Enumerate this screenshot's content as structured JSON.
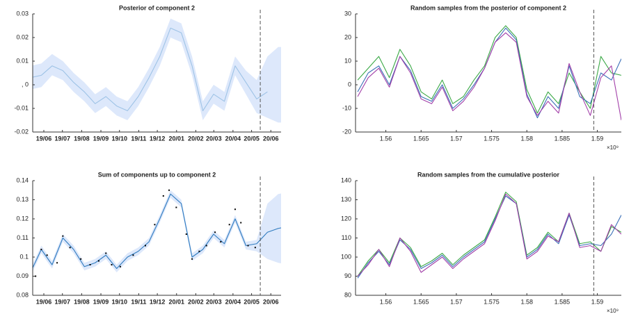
{
  "chart_data": [
    {
      "type": "band-line",
      "title": "Posterior of component 2",
      "x": [
        1.556,
        1.5575,
        1.559,
        1.5605,
        1.562,
        1.5635,
        1.565,
        1.5665,
        1.568,
        1.5695,
        1.571,
        1.5725,
        1.574,
        1.5755,
        1.577,
        1.5785,
        1.58,
        1.5815,
        1.583,
        1.5845,
        1.586,
        1.5875,
        1.589,
        1.5905,
        1.592,
        1.5934
      ],
      "xlim": [
        1.5578,
        1.5924
      ],
      "xticks": [
        {
          "value": 1.55935,
          "label": "19/06"
        },
        {
          "value": 1.56194,
          "label": "19/07"
        },
        {
          "value": 1.56462,
          "label": "19/08"
        },
        {
          "value": 1.5673,
          "label": "19/09"
        },
        {
          "value": 1.56989,
          "label": "19/10"
        },
        {
          "value": 1.57257,
          "label": "19/11"
        },
        {
          "value": 1.57516,
          "label": "19/12"
        },
        {
          "value": 1.57784,
          "label": "20/01"
        },
        {
          "value": 1.58052,
          "label": "20/02"
        },
        {
          "value": 1.58303,
          "label": "20/03"
        },
        {
          "value": 1.5857,
          "label": "20/04"
        },
        {
          "value": 1.58829,
          "label": "20/05"
        },
        {
          "value": 1.59097,
          "label": "20/06"
        }
      ],
      "ylim": [
        -0.02,
        0.03
      ],
      "yticks": [
        -0.02,
        -0.01,
        {
          "value": 0,
          "label": ", 0"
        },
        0.01,
        0.02,
        0.03
      ],
      "vline": 1.5895,
      "band": {
        "color": "#dde8fb",
        "lower": [
          -0.015,
          -0.002,
          -0.001,
          0.004,
          0.002,
          -0.003,
          -0.007,
          -0.012,
          -0.009,
          -0.013,
          -0.015,
          -0.009,
          -0.001,
          0.008,
          0.02,
          0.018,
          0.004,
          -0.015,
          -0.008,
          -0.011,
          0.004,
          -0.004,
          -0.012,
          -0.014,
          -0.016,
          -0.016
        ],
        "upper": [
          0.002,
          0.008,
          0.009,
          0.013,
          0.01,
          0.005,
          0.001,
          -0.004,
          -0.001,
          -0.005,
          -0.007,
          -0.001,
          0.007,
          0.016,
          0.028,
          0.026,
          0.012,
          -0.007,
          0.0,
          -0.003,
          0.012,
          0.006,
          0.002,
          0.012,
          0.016,
          0.016
        ]
      },
      "series": [
        {
          "color": "#9ec3e6",
          "values": [
            -0.006,
            0.003,
            0.004,
            0.008,
            0.006,
            0.001,
            -0.003,
            -0.008,
            -0.005,
            -0.009,
            -0.011,
            -0.005,
            0.003,
            0.012,
            0.024,
            0.022,
            0.008,
            -0.011,
            -0.004,
            -0.007,
            0.008,
            0.001,
            -0.006,
            -0.003,
            null,
            null
          ]
        }
      ]
    },
    {
      "type": "line",
      "title": "Random samples from the posterior of component 2",
      "x": [
        1.556,
        1.5575,
        1.559,
        1.5605,
        1.562,
        1.5635,
        1.565,
        1.5665,
        1.568,
        1.5695,
        1.571,
        1.5725,
        1.574,
        1.5755,
        1.577,
        1.5785,
        1.58,
        1.5815,
        1.583,
        1.5845,
        1.586,
        1.5875,
        1.589,
        1.5905,
        1.592,
        1.5934
      ],
      "xlim": [
        1.5557,
        1.5934
      ],
      "xticks": [
        1.56,
        1.565,
        1.57,
        1.575,
        1.58,
        1.585,
        1.59
      ],
      "x_exponent": "×10⁹",
      "ylim": [
        -20,
        30
      ],
      "yticks": [
        -20,
        -10,
        0,
        10,
        20,
        30
      ],
      "vline": 1.5895,
      "series": [
        {
          "color": "#3aa845",
          "values": [
            2,
            7,
            12,
            3,
            15,
            8,
            -3,
            -6,
            2,
            -8,
            -5,
            2,
            8,
            20,
            25,
            20,
            -2,
            -12,
            -3,
            -8,
            5,
            -3,
            -10,
            12,
            5,
            4
          ]
        },
        {
          "color": "#3a6fb7",
          "values": [
            -3,
            5,
            8,
            0,
            12,
            6,
            -5,
            -7,
            0,
            -10,
            -6,
            0,
            7,
            18,
            24,
            19,
            -4,
            -14,
            -5,
            -10,
            8,
            -5,
            -8,
            5,
            2,
            11
          ]
        },
        {
          "color": "#a23fa8",
          "values": [
            -5,
            3,
            7,
            -1,
            12,
            5,
            -6,
            -8,
            -1,
            -11,
            -7,
            -1,
            7,
            18,
            22,
            18,
            -5,
            -13,
            -7,
            -12,
            9,
            -3,
            -13,
            3,
            8,
            -15
          ]
        }
      ]
    },
    {
      "type": "band-line",
      "title": "Sum of components up to component 2",
      "x": [
        1.556,
        1.5575,
        1.559,
        1.5605,
        1.562,
        1.5635,
        1.565,
        1.5665,
        1.568,
        1.5695,
        1.571,
        1.5725,
        1.574,
        1.5755,
        1.577,
        1.5785,
        1.58,
        1.5815,
        1.583,
        1.5845,
        1.586,
        1.5875,
        1.589,
        1.5905,
        1.592,
        1.5934
      ],
      "xlim": [
        1.5578,
        1.5924
      ],
      "xticks": [
        {
          "value": 1.55935,
          "label": "19/06"
        },
        {
          "value": 1.56194,
          "label": "19/07"
        },
        {
          "value": 1.56462,
          "label": "19/08"
        },
        {
          "value": 1.5673,
          "label": "19/09"
        },
        {
          "value": 1.56989,
          "label": "19/10"
        },
        {
          "value": 1.57257,
          "label": "19/11"
        },
        {
          "value": 1.57516,
          "label": "19/12"
        },
        {
          "value": 1.57784,
          "label": "20/01"
        },
        {
          "value": 1.58052,
          "label": "20/02"
        },
        {
          "value": 1.58303,
          "label": "20/03"
        },
        {
          "value": 1.5857,
          "label": "20/04"
        },
        {
          "value": 1.58829,
          "label": "20/05"
        },
        {
          "value": 1.59097,
          "label": "20/06"
        }
      ],
      "ylim": [
        0.08,
        0.14
      ],
      "yticks": [
        0.08,
        0.09,
        0.1,
        0.11,
        0.12,
        0.13,
        0.14
      ],
      "vline": 1.5895,
      "band": {
        "color": "#dde8fb",
        "lower": [
          0.087,
          0.09,
          0.102,
          0.094,
          0.108,
          0.102,
          0.093,
          0.095,
          0.099,
          0.092,
          0.098,
          0.101,
          0.106,
          0.118,
          0.131,
          0.126,
          0.098,
          0.102,
          0.11,
          0.105,
          0.118,
          0.104,
          0.103,
          0.099,
          0.097,
          0.096
        ],
        "upper": [
          0.091,
          0.094,
          0.106,
          0.098,
          0.112,
          0.106,
          0.097,
          0.099,
          0.103,
          0.096,
          0.102,
          0.105,
          0.11,
          0.122,
          0.135,
          0.13,
          0.102,
          0.106,
          0.114,
          0.109,
          0.122,
          0.108,
          0.109,
          0.128,
          0.133,
          0.134
        ]
      },
      "series": [
        {
          "color": "#2f7bbf",
          "values": [
            0.089,
            0.092,
            0.104,
            0.096,
            0.11,
            0.104,
            0.095,
            0.097,
            0.101,
            0.094,
            0.1,
            0.103,
            0.108,
            0.12,
            0.133,
            0.128,
            0.1,
            0.104,
            0.112,
            0.107,
            0.12,
            0.106,
            0.107,
            0.113,
            0.115,
            0.116
          ]
        }
      ],
      "points": {
        "color": "#000000",
        "x": [
          1.5582,
          1.559,
          1.5598,
          1.5612,
          1.562,
          1.563,
          1.5645,
          1.5658,
          1.567,
          1.568,
          1.5688,
          1.57,
          1.5718,
          1.5735,
          1.5748,
          1.576,
          1.5768,
          1.5778,
          1.5792,
          1.58,
          1.581,
          1.582,
          1.5832,
          1.584,
          1.5852,
          1.586,
          1.5868,
          1.5878,
          1.5888
        ],
        "y": [
          0.09,
          0.104,
          0.101,
          0.097,
          0.111,
          0.105,
          0.099,
          0.096,
          0.098,
          0.102,
          0.096,
          0.095,
          0.101,
          0.106,
          0.117,
          0.132,
          0.135,
          0.126,
          0.112,
          0.099,
          0.103,
          0.106,
          0.113,
          0.108,
          0.117,
          0.125,
          0.118,
          0.106,
          0.105
        ]
      }
    },
    {
      "type": "line",
      "title": "Random samples from the cumulative posterior",
      "x": [
        1.556,
        1.5575,
        1.559,
        1.5605,
        1.562,
        1.5635,
        1.565,
        1.5665,
        1.568,
        1.5695,
        1.571,
        1.5725,
        1.574,
        1.5755,
        1.577,
        1.5785,
        1.58,
        1.5815,
        1.583,
        1.5845,
        1.586,
        1.5875,
        1.589,
        1.5905,
        1.592,
        1.5934
      ],
      "xlim": [
        1.5557,
        1.5934
      ],
      "xticks": [
        1.56,
        1.565,
        1.57,
        1.575,
        1.58,
        1.585,
        1.59
      ],
      "x_exponent": "×10⁹",
      "ylim": [
        80,
        140
      ],
      "yticks": [
        80,
        90,
        100,
        110,
        120,
        130,
        140
      ],
      "vline": 1.5895,
      "series": [
        {
          "color": "#3aa845",
          "values": [
            90,
            98,
            104,
            97,
            110,
            105,
            95,
            98,
            102,
            96,
            101,
            105,
            109,
            121,
            134,
            129,
            101,
            105,
            113,
            108,
            123,
            107,
            108,
            103,
            116,
            113
          ]
        },
        {
          "color": "#3a6fb7",
          "values": [
            89,
            97,
            103,
            96,
            109,
            104,
            94,
            97,
            101,
            95,
            100,
            104,
            108,
            120,
            132,
            128,
            100,
            104,
            112,
            107,
            122,
            106,
            107,
            106,
            112,
            122
          ]
        },
        {
          "color": "#a23fa8",
          "values": [
            90,
            96,
            104,
            95,
            110,
            103,
            92,
            96,
            100,
            94,
            99,
            103,
            107,
            119,
            133,
            128,
            99,
            103,
            111,
            108,
            123,
            105,
            106,
            103,
            117,
            112
          ]
        }
      ]
    }
  ]
}
